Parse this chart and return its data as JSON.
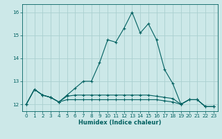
{
  "title": "",
  "xlabel": "Humidex (Indice chaleur)",
  "bg_color": "#cce8e8",
  "grid_color": "#aad0d0",
  "line_color": "#006060",
  "xlim": [
    -0.5,
    23.5
  ],
  "ylim": [
    11.7,
    16.35
  ],
  "yticks": [
    12,
    13,
    14,
    15,
    16
  ],
  "xticks": [
    0,
    1,
    2,
    3,
    4,
    5,
    6,
    7,
    8,
    9,
    10,
    11,
    12,
    13,
    14,
    15,
    16,
    17,
    18,
    19,
    20,
    21,
    22,
    23
  ],
  "series1_x": [
    0,
    1,
    2,
    3,
    4,
    5,
    6,
    7,
    8,
    9,
    10,
    11,
    12,
    13,
    14,
    15,
    16,
    17,
    18,
    19,
    20,
    21,
    22,
    23
  ],
  "series1_y": [
    12.0,
    12.65,
    12.4,
    12.3,
    12.1,
    12.4,
    12.7,
    13.0,
    13.0,
    13.8,
    14.8,
    14.7,
    15.3,
    16.0,
    15.1,
    15.5,
    14.8,
    13.5,
    12.9,
    12.0,
    12.2,
    12.2,
    11.9,
    11.9
  ],
  "series2_x": [
    0,
    1,
    2,
    3,
    4,
    5,
    6,
    7,
    8,
    9,
    10,
    11,
    12,
    13,
    14,
    15,
    16,
    17,
    18,
    19,
    20,
    21,
    22,
    23
  ],
  "series2_y": [
    12.0,
    12.65,
    12.4,
    12.3,
    12.1,
    12.35,
    12.4,
    12.4,
    12.4,
    12.4,
    12.4,
    12.4,
    12.4,
    12.4,
    12.4,
    12.4,
    12.35,
    12.3,
    12.25,
    12.0,
    12.2,
    12.2,
    11.9,
    11.9
  ],
  "series3_x": [
    0,
    1,
    2,
    3,
    4,
    5,
    6,
    7,
    8,
    9,
    10,
    11,
    12,
    13,
    14,
    15,
    16,
    17,
    18,
    19,
    20,
    21,
    22,
    23
  ],
  "series3_y": [
    12.0,
    12.65,
    12.4,
    12.3,
    12.1,
    12.2,
    12.2,
    12.2,
    12.2,
    12.2,
    12.2,
    12.2,
    12.2,
    12.2,
    12.2,
    12.2,
    12.2,
    12.15,
    12.1,
    12.0,
    12.2,
    12.2,
    11.9,
    11.9
  ],
  "xlabel_fontsize": 6.0,
  "tick_fontsize": 5.2,
  "linewidth": 0.8,
  "markersize": 3.0
}
